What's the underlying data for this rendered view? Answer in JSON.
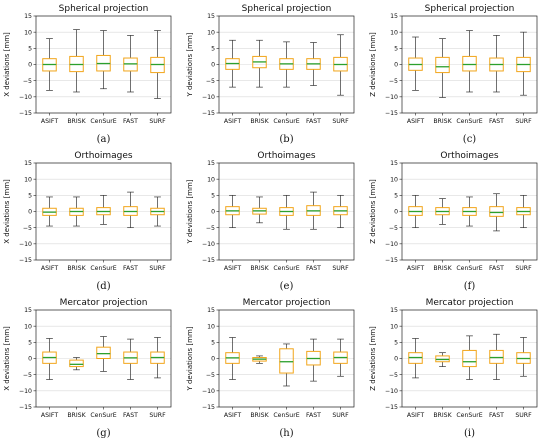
{
  "colors": {
    "box_edge": "#f2a51a",
    "median": "#2ca02c",
    "whisker": "#333333",
    "grid": "#d9d9d9"
  },
  "chart_data": [
    {
      "type": "boxplot",
      "title": "Spherical projection",
      "ylabel": "X deviations [mm]",
      "panel_label": "(a)",
      "categories": [
        "ASIFT",
        "BRISK",
        "CenSurE",
        "FAST",
        "SURF"
      ],
      "ylim": [
        -15,
        15
      ],
      "yticks": [
        -15,
        -10,
        -5,
        0,
        5,
        10,
        15
      ],
      "grid": true,
      "boxes": [
        {
          "whislo": -8.0,
          "q1": -2.0,
          "med": 0.0,
          "q3": 1.8,
          "whishi": 8.0
        },
        {
          "whislo": -8.5,
          "q1": -2.2,
          "med": 0.0,
          "q3": 2.5,
          "whishi": 10.8
        },
        {
          "whislo": -7.5,
          "q1": -2.0,
          "med": 0.3,
          "q3": 2.8,
          "whishi": 10.5
        },
        {
          "whislo": -8.5,
          "q1": -2.0,
          "med": 0.2,
          "q3": 2.0,
          "whishi": 9.0
        },
        {
          "whislo": -10.5,
          "q1": -2.5,
          "med": 0.0,
          "q3": 2.2,
          "whishi": 10.5
        }
      ]
    },
    {
      "type": "boxplot",
      "title": "Spherical projection",
      "ylabel": "Y deviations [mm]",
      "panel_label": "(b)",
      "categories": [
        "ASIFT",
        "BRISK",
        "CenSurE",
        "FAST",
        "SURF"
      ],
      "ylim": [
        -15,
        15
      ],
      "yticks": [
        -15,
        -10,
        -5,
        0,
        5,
        10,
        15
      ],
      "grid": true,
      "boxes": [
        {
          "whislo": -7.0,
          "q1": -1.5,
          "med": 0.3,
          "q3": 1.8,
          "whishi": 7.5
        },
        {
          "whislo": -7.0,
          "q1": -1.0,
          "med": 0.8,
          "q3": 2.5,
          "whishi": 7.5
        },
        {
          "whislo": -7.0,
          "q1": -1.5,
          "med": 0.2,
          "q3": 1.8,
          "whishi": 7.0
        },
        {
          "whislo": -6.5,
          "q1": -1.5,
          "med": 0.2,
          "q3": 1.8,
          "whishi": 6.8
        },
        {
          "whislo": -9.5,
          "q1": -2.0,
          "med": 0.0,
          "q3": 2.2,
          "whishi": 9.2
        }
      ]
    },
    {
      "type": "boxplot",
      "title": "Spherical projection",
      "ylabel": "Z deviations [mm]",
      "panel_label": "(c)",
      "categories": [
        "ASIFT",
        "BRISK",
        "CenSurE",
        "FAST",
        "SURF"
      ],
      "ylim": [
        -15,
        15
      ],
      "yticks": [
        -15,
        -10,
        -5,
        0,
        5,
        10,
        15
      ],
      "grid": true,
      "boxes": [
        {
          "whislo": -8.0,
          "q1": -1.8,
          "med": 0.0,
          "q3": 2.0,
          "whishi": 8.5
        },
        {
          "whislo": -10.2,
          "q1": -2.5,
          "med": -0.7,
          "q3": 2.2,
          "whishi": 8.0
        },
        {
          "whislo": -8.5,
          "q1": -2.0,
          "med": 0.0,
          "q3": 2.5,
          "whishi": 10.5
        },
        {
          "whislo": -8.5,
          "q1": -2.0,
          "med": 0.0,
          "q3": 2.0,
          "whishi": 9.0
        },
        {
          "whislo": -9.5,
          "q1": -2.2,
          "med": 0.0,
          "q3": 2.2,
          "whishi": 10.0
        }
      ]
    },
    {
      "type": "boxplot",
      "title": "Orthoimages",
      "ylabel": "X deviations [mm]",
      "panel_label": "(d)",
      "categories": [
        "ASIFT",
        "BRISK",
        "CenSurE",
        "FAST",
        "SURF"
      ],
      "ylim": [
        -15,
        15
      ],
      "yticks": [
        -15,
        -10,
        -5,
        0,
        5,
        10,
        15
      ],
      "grid": true,
      "boxes": [
        {
          "whislo": -4.5,
          "q1": -1.2,
          "med": -0.2,
          "q3": 1.0,
          "whishi": 4.5
        },
        {
          "whislo": -4.5,
          "q1": -1.2,
          "med": 0.0,
          "q3": 1.0,
          "whishi": 4.5
        },
        {
          "whislo": -4.0,
          "q1": -1.0,
          "med": 0.0,
          "q3": 1.2,
          "whishi": 5.0
        },
        {
          "whislo": -5.0,
          "q1": -1.2,
          "med": 0.0,
          "q3": 1.5,
          "whishi": 6.0
        },
        {
          "whislo": -4.5,
          "q1": -1.0,
          "med": 0.0,
          "q3": 1.0,
          "whishi": 4.5
        }
      ]
    },
    {
      "type": "boxplot",
      "title": "Orthoimages",
      "ylabel": "Y deviations [mm]",
      "panel_label": "(e)",
      "categories": [
        "ASIFT",
        "BRISK",
        "CenSurE",
        "FAST",
        "SURF"
      ],
      "ylim": [
        -15,
        15
      ],
      "yticks": [
        -15,
        -10,
        -5,
        0,
        5,
        10,
        15
      ],
      "grid": true,
      "boxes": [
        {
          "whislo": -5.0,
          "q1": -1.0,
          "med": 0.2,
          "q3": 1.5,
          "whishi": 5.0
        },
        {
          "whislo": -3.5,
          "q1": -0.8,
          "med": 0.2,
          "q3": 1.0,
          "whishi": 4.5
        },
        {
          "whislo": -5.5,
          "q1": -1.2,
          "med": 0.0,
          "q3": 1.2,
          "whishi": 5.0
        },
        {
          "whislo": -5.5,
          "q1": -1.2,
          "med": 0.2,
          "q3": 1.8,
          "whishi": 6.0
        },
        {
          "whislo": -5.0,
          "q1": -1.0,
          "med": 0.2,
          "q3": 1.5,
          "whishi": 5.0
        }
      ]
    },
    {
      "type": "boxplot",
      "title": "Orthoimages",
      "ylabel": "Z deviations [mm]",
      "panel_label": "(f)",
      "categories": [
        "ASIFT",
        "BRISK",
        "CenSurE",
        "FAST",
        "SURF"
      ],
      "ylim": [
        -15,
        15
      ],
      "yticks": [
        -15,
        -10,
        -5,
        0,
        5,
        10,
        15
      ],
      "grid": true,
      "boxes": [
        {
          "whislo": -5.0,
          "q1": -1.2,
          "med": 0.0,
          "q3": 1.5,
          "whishi": 5.0
        },
        {
          "whislo": -4.0,
          "q1": -1.0,
          "med": 0.0,
          "q3": 1.2,
          "whishi": 4.0
        },
        {
          "whislo": -4.5,
          "q1": -1.2,
          "med": 0.0,
          "q3": 1.2,
          "whishi": 4.5
        },
        {
          "whislo": -6.0,
          "q1": -1.5,
          "med": -0.3,
          "q3": 1.5,
          "whishi": 5.5
        },
        {
          "whislo": -5.0,
          "q1": -1.0,
          "med": 0.0,
          "q3": 1.2,
          "whishi": 5.0
        }
      ]
    },
    {
      "type": "boxplot",
      "title": "Mercator projection",
      "ylabel": "X deviations [mm]",
      "panel_label": "(g)",
      "categories": [
        "ASIFT",
        "BRISK",
        "CenSurE",
        "FAST",
        "SURF"
      ],
      "ylim": [
        -15,
        15
      ],
      "yticks": [
        -15,
        -10,
        -5,
        0,
        5,
        10,
        15
      ],
      "grid": true,
      "boxes": [
        {
          "whislo": -6.5,
          "q1": -1.5,
          "med": 0.3,
          "q3": 2.0,
          "whishi": 6.2
        },
        {
          "whislo": -3.5,
          "q1": -2.5,
          "med": -1.8,
          "q3": -0.5,
          "whishi": 0.3
        },
        {
          "whislo": -4.0,
          "q1": 0.0,
          "med": 1.5,
          "q3": 3.5,
          "whishi": 6.8
        },
        {
          "whislo": -6.5,
          "q1": -1.5,
          "med": 0.2,
          "q3": 2.0,
          "whishi": 6.0
        },
        {
          "whislo": -6.0,
          "q1": -1.5,
          "med": 0.3,
          "q3": 2.0,
          "whishi": 6.5
        }
      ]
    },
    {
      "type": "boxplot",
      "title": "Mercator projection",
      "ylabel": "Y deviations [mm]",
      "panel_label": "(h)",
      "categories": [
        "ASIFT",
        "BRISK",
        "CenSurE",
        "FAST",
        "SURF"
      ],
      "ylim": [
        -15,
        15
      ],
      "yticks": [
        -15,
        -10,
        -5,
        0,
        5,
        10,
        15
      ],
      "grid": true,
      "boxes": [
        {
          "whislo": -6.5,
          "q1": -1.5,
          "med": 0.2,
          "q3": 1.8,
          "whishi": 6.5
        },
        {
          "whislo": -1.5,
          "q1": -0.8,
          "med": -0.2,
          "q3": 0.3,
          "whishi": 0.8
        },
        {
          "whislo": -8.5,
          "q1": -4.5,
          "med": -1.0,
          "q3": 3.0,
          "whishi": 4.5
        },
        {
          "whislo": -7.0,
          "q1": -2.0,
          "med": 0.0,
          "q3": 2.2,
          "whishi": 6.0
        },
        {
          "whislo": -5.5,
          "q1": -1.5,
          "med": 0.3,
          "q3": 2.0,
          "whishi": 6.0
        }
      ]
    },
    {
      "type": "boxplot",
      "title": "Mercator projection",
      "ylabel": "Z deviations [mm]",
      "panel_label": "(i)",
      "categories": [
        "ASIFT",
        "BRISK",
        "CenSurE",
        "FAST",
        "SURF"
      ],
      "ylim": [
        -15,
        15
      ],
      "yticks": [
        -15,
        -10,
        -5,
        0,
        5,
        10,
        15
      ],
      "grid": true,
      "boxes": [
        {
          "whislo": -6.0,
          "q1": -1.5,
          "med": 0.3,
          "q3": 1.8,
          "whishi": 6.2
        },
        {
          "whislo": -2.5,
          "q1": -1.0,
          "med": -0.3,
          "q3": 0.8,
          "whishi": 1.8
        },
        {
          "whislo": -6.5,
          "q1": -2.5,
          "med": -1.0,
          "q3": 2.5,
          "whishi": 7.0
        },
        {
          "whislo": -6.5,
          "q1": -1.5,
          "med": 0.3,
          "q3": 2.5,
          "whishi": 7.5
        },
        {
          "whislo": -5.5,
          "q1": -1.5,
          "med": 0.0,
          "q3": 1.8,
          "whishi": 6.5
        }
      ]
    }
  ]
}
